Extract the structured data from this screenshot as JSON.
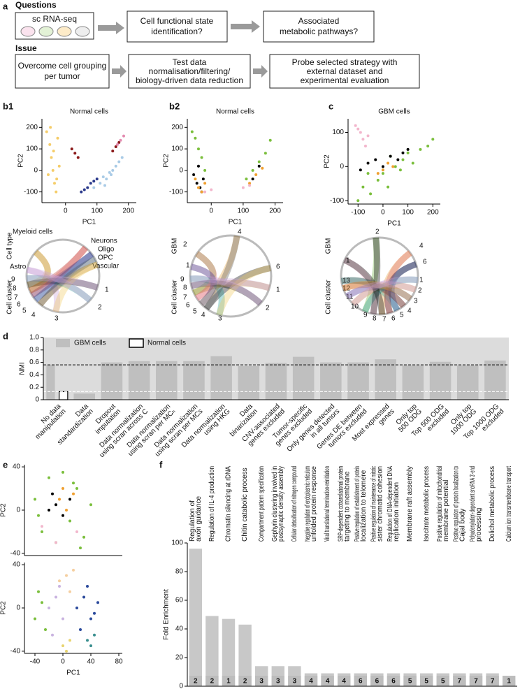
{
  "panel_labels": [
    "a",
    "b1",
    "b2",
    "c",
    "d",
    "e",
    "f"
  ],
  "diagram": {
    "questions_title": "Questions",
    "questions": [
      [
        "sc RNA-seq"
      ],
      [
        "Cell functional state",
        "identification?"
      ],
      [
        "Associated",
        "metabolic pathways?"
      ]
    ],
    "issue_title": "Issue",
    "issues": [
      [
        "Overcome cell grouping",
        "per tumor"
      ],
      [
        "Test data",
        "normalisation/filtering/",
        "biology-driven data reduction"
      ],
      [
        "Probe selected strategy with",
        "external dataset and",
        "experimental evaluation"
      ]
    ]
  },
  "chords": [
    {
      "side_labels": [
        "Cell type",
        "Cell cluster"
      ],
      "labels": [
        {
          "text": "Myeloid cells",
          "color": "#f2c85b"
        },
        {
          "text": "Neurons",
          "color": "#c0392b"
        },
        {
          "text": "Oligo",
          "color": "#2b3a8c"
        },
        {
          "text": "OPC",
          "color": "#8ab4d8"
        },
        {
          "text": "Vascular",
          "color": "#b8862b"
        },
        {
          "text": "Astro",
          "color": "#c9a0d6"
        },
        {
          "text": "9",
          "color": "#2aa198"
        },
        {
          "text": "8",
          "color": "#000000"
        },
        {
          "text": "7",
          "color": "#b8862b"
        },
        {
          "text": "6",
          "color": "#e06666"
        },
        {
          "text": "5",
          "color": "#2b3a8c"
        },
        {
          "text": "4",
          "color": "#555555"
        },
        {
          "text": "3",
          "color": "#f2c85b"
        },
        {
          "text": "2",
          "color": "#c9a0d6"
        },
        {
          "text": "1",
          "color": "#c9a0d6"
        }
      ]
    },
    {
      "side_labels": [
        "GBM",
        "Cell cluster"
      ],
      "labels": [
        {
          "text": "2",
          "color": "#6cb33f"
        },
        {
          "text": "1",
          "color": "#f2a6c2"
        },
        {
          "text": "4",
          "color": "#e6a13a"
        },
        {
          "text": "6",
          "color": "#000000"
        },
        {
          "text": "9",
          "color": "#2aa198"
        },
        {
          "text": "8",
          "color": "#000000"
        },
        {
          "text": "7",
          "color": "#b8862b"
        },
        {
          "text": "6",
          "color": "#e06666"
        },
        {
          "text": "5",
          "color": "#2b3a8c"
        },
        {
          "text": "4",
          "color": "#555555"
        },
        {
          "text": "3",
          "color": "#f2c85b"
        },
        {
          "text": "2",
          "color": "#c9a0d6"
        },
        {
          "text": "1",
          "color": "#c9a0d6"
        }
      ]
    },
    {
      "side_labels": [
        "GBM",
        "Cell cluster"
      ],
      "labels": [
        {
          "text": "2",
          "color": "#6cb33f"
        },
        {
          "text": "1",
          "color": "#f2a6c2"
        },
        {
          "text": "4",
          "color": "#e6a13a"
        },
        {
          "text": "6",
          "color": "#000000"
        },
        {
          "text": "13",
          "color": "#2aa198"
        },
        {
          "text": "12",
          "color": "#c0392b"
        },
        {
          "text": "11",
          "color": "#2b3a8c"
        },
        {
          "text": "10",
          "color": "#e6a13a"
        },
        {
          "text": "9",
          "color": "#2aa198"
        },
        {
          "text": "8",
          "color": "#000000"
        },
        {
          "text": "7",
          "color": "#000000"
        },
        {
          "text": "6",
          "color": "#e06666"
        },
        {
          "text": "5",
          "color": "#2b3a8c"
        },
        {
          "text": "4",
          "color": "#555555"
        },
        {
          "text": "3",
          "color": "#e6a13a"
        },
        {
          "text": "2",
          "color": "#c9a0d6"
        },
        {
          "text": "1",
          "color": "#c9a0d6"
        }
      ]
    }
  ],
  "chart_data": [
    {
      "type": "scatter",
      "title": "Normal cells",
      "xlabel": "PC1",
      "ylabel": "PC2",
      "xlim": [
        -75,
        225
      ],
      "ylim": [
        -150,
        240
      ],
      "xticks": [
        0,
        100,
        200
      ],
      "yticks": [
        -100,
        0,
        100,
        200
      ],
      "series": [
        {
          "color": "#f5cd6a",
          "x": [
            -60,
            -50,
            -45,
            -40,
            -35,
            -30,
            -25,
            -20,
            -55,
            -38,
            -28,
            -48
          ],
          "y": [
            180,
            120,
            60,
            0,
            -60,
            -100,
            150,
            20,
            -20,
            90,
            -40,
            200
          ]
        },
        {
          "color": "#a9cbe6",
          "x": [
            90,
            110,
            120,
            130,
            140,
            150,
            160,
            170,
            180,
            125,
            145
          ],
          "y": [
            -80,
            -60,
            -30,
            -40,
            -10,
            0,
            20,
            40,
            60,
            -70,
            -20
          ]
        },
        {
          "color": "#2b3a8c",
          "x": [
            50,
            60,
            70,
            80,
            90,
            100
          ],
          "y": [
            -100,
            -90,
            -80,
            -60,
            -50,
            -40
          ]
        },
        {
          "color": "#8b1a1a",
          "x": [
            20,
            30,
            40,
            150,
            160,
            170
          ],
          "y": [
            100,
            80,
            60,
            90,
            110,
            130
          ]
        },
        {
          "color": "#e38bb0",
          "x": [
            165,
            175,
            185
          ],
          "y": [
            120,
            140,
            160
          ]
        }
      ]
    },
    {
      "type": "scatter",
      "title": "Normal cells",
      "xlabel": "PC1",
      "ylabel": "PC2",
      "xlim": [
        -75,
        225
      ],
      "ylim": [
        -150,
        240
      ],
      "xticks": [
        0,
        100,
        200
      ],
      "yticks": [
        -100,
        0,
        100,
        200
      ],
      "series": [
        {
          "color": "#7bbf3d",
          "x": [
            -60,
            -50,
            -40,
            -30,
            -20,
            110,
            130,
            150,
            170,
            185
          ],
          "y": [
            180,
            150,
            100,
            60,
            0,
            -40,
            0,
            40,
            80,
            140
          ]
        },
        {
          "color": "#000000",
          "x": [
            -55,
            -45,
            -35,
            -25,
            -40,
            -30,
            130,
            150
          ],
          "y": [
            -20,
            -60,
            -80,
            -40,
            20,
            -100,
            -40,
            20
          ]
        },
        {
          "color": "#f0a030",
          "x": [
            -50,
            -40,
            -30,
            -20,
            120,
            140,
            160
          ],
          "y": [
            -40,
            -80,
            -100,
            -60,
            -60,
            -20,
            10
          ]
        },
        {
          "color": "#f2b6cc",
          "x": [
            -20,
            0,
            100,
            120
          ],
          "y": [
            -100,
            -90,
            -80,
            -70
          ]
        }
      ]
    },
    {
      "type": "scatter",
      "title": "GBM cells",
      "xlabel": "PC1",
      "ylabel": "PC2",
      "xlim": [
        -140,
        230
      ],
      "ylim": [
        -110,
        140
      ],
      "xticks": [
        -100,
        0,
        100,
        200
      ],
      "yticks": [
        -100,
        0,
        100
      ],
      "series": [
        {
          "color": "#f2b6cc",
          "x": [
            -110,
            -90,
            -80,
            -70,
            -60,
            -100
          ],
          "y": [
            120,
            100,
            80,
            60,
            90,
            110
          ]
        },
        {
          "color": "#7bbf3d",
          "x": [
            -100,
            -80,
            -50,
            -20,
            0,
            20,
            50,
            80,
            100,
            120,
            150,
            180,
            200,
            -60,
            30,
            70
          ],
          "y": [
            -100,
            -60,
            -80,
            -40,
            -20,
            -60,
            0,
            20,
            40,
            10,
            50,
            60,
            80,
            -20,
            30,
            -10
          ]
        },
        {
          "color": "#000000",
          "x": [
            -90,
            -60,
            -30,
            0,
            30,
            60,
            80,
            100
          ],
          "y": [
            -10,
            10,
            20,
            0,
            30,
            20,
            40,
            50
          ]
        },
        {
          "color": "#f0a030",
          "x": [
            -20,
            0,
            20,
            40
          ],
          "y": [
            -20,
            -10,
            10,
            0
          ]
        }
      ]
    },
    {
      "type": "bar",
      "ylabel": "NMI",
      "ylim": [
        0,
        1
      ],
      "yticks": [
        0,
        0.2,
        0.4,
        0.6,
        0.8,
        {
          "value": 1,
          "label": "1.0"
        }
      ],
      "background": "#dcdcdc",
      "categories": [
        [
          "No data",
          "manipulation"
        ],
        [
          "Data",
          "standardization"
        ],
        [
          "Dropout",
          "imputation"
        ],
        [
          "Data normalization",
          "using scran across C"
        ],
        [
          "Data normalization",
          "using scran per MCₕ"
        ],
        [
          "Data normalization",
          "using scran per MCs"
        ],
        [
          "Data normalization",
          "using HKG"
        ],
        [
          "Data",
          "binarization"
        ],
        [
          "CNV-associated",
          "genes excluded"
        ],
        [
          "Tumor-specific",
          "genes excluded"
        ],
        [
          "Only genes detected",
          "in all tumors"
        ],
        [
          "Genes DE between",
          "tumors excluded"
        ],
        [
          "Most expressed",
          "genes"
        ],
        [
          "Only top",
          "500 ODG"
        ],
        [
          "Top 500 ODG",
          "excluded"
        ],
        [
          "Only top",
          "1000 ODG"
        ],
        [
          "Top 1000 ODG",
          "excluded"
        ]
      ],
      "series": [
        {
          "name": "GBM cells",
          "color": "#bfbfbf",
          "values": [
            0.56,
            0.1,
            0.6,
            0.62,
            0.62,
            0.62,
            0.7,
            0.54,
            0.59,
            0.69,
            0.6,
            0.6,
            0.65,
            0.55,
            0.61,
            0.55,
            0.63
          ]
        },
        {
          "name": "Normal cells",
          "color": "#ffffff",
          "values": [
            0.13,
            null,
            null,
            null,
            null,
            null,
            null,
            null,
            null,
            null,
            null,
            null,
            null,
            null,
            null,
            null,
            null
          ]
        }
      ],
      "reference_lines": [
        {
          "value": 0.56,
          "color": "#000000"
        },
        {
          "value": 0.13,
          "color": "#ffffff"
        }
      ]
    },
    {
      "type": "scatter",
      "ylabel": "PC2",
      "xlim": [
        -55,
        85
      ],
      "ylim": [
        -42,
        42
      ],
      "yticks": [
        -40,
        0,
        40
      ],
      "series": [
        {
          "color": "#7bbf3d",
          "x": [
            -40,
            -30,
            -20,
            -10,
            0,
            10,
            20,
            30,
            40,
            -35,
            25,
            15
          ],
          "y": [
            10,
            -20,
            30,
            -30,
            35,
            -10,
            20,
            -25,
            5,
            -5,
            -35,
            25
          ]
        },
        {
          "color": "#000000",
          "x": [
            -20,
            -10,
            0,
            10,
            -15
          ],
          "y": [
            0,
            5,
            -5,
            10,
            15
          ]
        },
        {
          "color": "#f0a030",
          "x": [
            -5,
            5,
            15,
            0
          ],
          "y": [
            10,
            0,
            15,
            20
          ]
        },
        {
          "color": "#f2b6cc",
          "x": [
            -30,
            -10,
            20
          ],
          "y": [
            -15,
            -30,
            -20
          ]
        }
      ]
    },
    {
      "type": "scatter",
      "xlabel": "PC1",
      "ylabel": "PC2",
      "xlim": [
        -55,
        85
      ],
      "ylim": [
        -42,
        42
      ],
      "xticks": [
        -40,
        0,
        40,
        80
      ],
      "yticks": [
        -40,
        0,
        40
      ],
      "series": [
        {
          "color": "#2b4a9c",
          "x": [
            20,
            30,
            40,
            50,
            25,
            35,
            45
          ],
          "y": [
            0,
            10,
            -10,
            5,
            -20,
            20,
            -5
          ]
        },
        {
          "color": "#c9b3e0",
          "x": [
            -20,
            -10,
            0,
            -15,
            -5
          ],
          "y": [
            0,
            10,
            -10,
            -25,
            20
          ]
        },
        {
          "color": "#f5cfa0",
          "x": [
            -5,
            5,
            15,
            10
          ],
          "y": [
            25,
            30,
            35,
            15
          ]
        },
        {
          "color": "#7bbf3d",
          "x": [
            -40,
            -30,
            -35,
            -25
          ],
          "y": [
            -10,
            5,
            15,
            -20
          ]
        },
        {
          "color": "#3a8f8f",
          "x": [
            35,
            45,
            40
          ],
          "y": [
            -30,
            -25,
            -35
          ]
        },
        {
          "color": "#e8d470",
          "x": [
            0,
            10,
            5
          ],
          "y": [
            -35,
            -30,
            -40
          ]
        }
      ]
    },
    {
      "type": "bar",
      "ylabel": "Fold Enrichment",
      "ylim": [
        0,
        100
      ],
      "yticks": [
        0,
        20,
        40,
        60,
        80,
        100
      ],
      "color": "#c8c8c8",
      "categories": [
        [
          "Regulation of",
          "axon guidance"
        ],
        [
          "Regulation of IL-4 production"
        ],
        [
          "Chromatin silencing at rDNA"
        ],
        [
          "Chitin catabolic process"
        ],
        [
          "Compartment pattern specification"
        ],
        [
          "Gephyrin clustering involved in",
          "postsynaptic density assembly"
        ],
        [
          "Cellular detoxification of nitrogen compound"
        ],
        [
          "Negative regulation of endoplasmic reticulum",
          "unfolded protein response"
        ],
        [
          "Viral translational termination-reinitiation"
        ],
        [
          "SRP-dependent cotranslational protein",
          "targeting to membrane"
        ],
        [
          "Positive regulation of establishment of protein",
          "localization to telomere"
        ],
        [
          "Positive regulation of maintenance of mitotic",
          "sister chromatid cohesion"
        ],
        [
          "Regulation of DNA-dependent DNA",
          "replication initiation"
        ],
        [
          "Membrane raft assembly"
        ],
        [
          "Isocitrate metabolic process"
        ],
        [
          "Positive regulation of mitochondrial",
          "membrane potential"
        ],
        [
          "Positive regulation of protein localization to",
          "Cajal body"
        ],
        [
          "Polyadenylation-dependent snoRNA 3'-end",
          "processing"
        ],
        [
          "Dolichol metabolic process"
        ],
        [
          "Calcium ion transmembrane transport"
        ]
      ],
      "values": [
        96,
        49,
        47,
        43,
        14,
        14,
        14,
        9,
        9,
        9,
        9,
        9,
        9,
        9,
        9,
        9,
        9,
        9,
        9,
        4
      ],
      "cluster_labels": [
        2,
        2,
        1,
        2,
        3,
        3,
        3,
        4,
        4,
        4,
        6,
        6,
        6,
        5,
        5,
        5,
        7,
        7,
        7,
        1
      ],
      "cluster_colors": [
        "#2b3a8c",
        "#2b3a8c",
        "#f2c85b",
        "#2b3a8c",
        "#5b87b0",
        "#5b87b0",
        "#5b87b0",
        "#555555",
        "#555555",
        "#555555",
        "#e8a0a0",
        "#e8a0a0",
        "#e8a0a0",
        "#9c7c2c",
        "#9c7c2c",
        "#9c7c2c",
        "#333333",
        "#333333",
        "#333333",
        "#f2c85b"
      ]
    }
  ]
}
